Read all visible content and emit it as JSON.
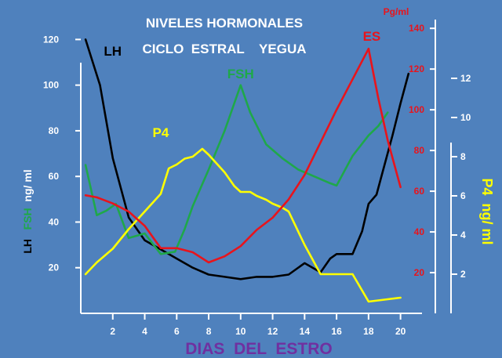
{
  "chart_data": {
    "type": "line",
    "title_line1": "NIVELES  HORMONALES",
    "title_line2": "CICLO  ESTRAL    YEGUA",
    "xlabel": "DIAS  DEL  ESTRO",
    "x_ticks": [
      2,
      4,
      6,
      8,
      10,
      12,
      14,
      16,
      18,
      20
    ],
    "xlim": [
      0,
      21
    ],
    "left_axis": {
      "label_parts": [
        "LH",
        "FSH",
        "ng/ ml"
      ],
      "ticks": [
        20,
        40,
        60,
        80,
        100,
        120
      ],
      "ylim": [
        0,
        127
      ]
    },
    "right_axis_es": {
      "unit": "Pg/ml",
      "ticks": [
        20,
        40,
        60,
        80,
        100,
        120,
        140
      ],
      "ylim": [
        0,
        147
      ]
    },
    "right_axis_p4": {
      "label": "P4  ng/ ml",
      "ticks": [
        2,
        4,
        6,
        8,
        10,
        12
      ],
      "ylim": [
        0,
        15.6
      ]
    },
    "series": [
      {
        "name": "LH",
        "color": "#000000",
        "axis": "left",
        "x": [
          0.3,
          1.2,
          2.0,
          3.0,
          4.0,
          5.0,
          6.0,
          7.0,
          8.0,
          9.0,
          10.0,
          11.0,
          12.0,
          13.0,
          14.0,
          15.0,
          15.6,
          16.0,
          17.0,
          17.6,
          18.0,
          18.5,
          19.0,
          19.5,
          20.0,
          20.5
        ],
        "y": [
          120,
          100,
          68,
          42,
          32,
          28,
          24,
          20,
          17,
          16,
          15,
          16,
          16,
          17,
          22,
          18,
          24,
          26,
          26,
          36,
          48,
          52,
          65,
          78,
          92,
          105
        ]
      },
      {
        "name": "FSH",
        "color": "#1fa84a",
        "axis": "left",
        "x": [
          0.3,
          1.0,
          1.6,
          2.2,
          3.0,
          4.0,
          5.0,
          5.9,
          6.5,
          7.0,
          8.0,
          9.0,
          10.0,
          10.6,
          11.6,
          12.6,
          13.6,
          14.6,
          15.6,
          16.0,
          17.0,
          18.0,
          18.6,
          19.2
        ],
        "y": [
          65,
          43,
          45,
          48,
          33,
          35,
          26,
          27,
          37,
          47,
          63,
          80,
          100,
          88,
          74,
          68,
          63,
          60,
          57,
          56,
          69,
          78,
          82,
          88
        ]
      },
      {
        "name": "P4",
        "color": "#ffff00",
        "axis": "p4",
        "x": [
          0.3,
          1.0,
          2.0,
          3.0,
          4.0,
          5.0,
          5.5,
          6.0,
          6.5,
          7.0,
          7.6,
          8.0,
          9.0,
          9.6,
          10.0,
          10.6,
          11.0,
          11.6,
          12.0,
          12.6,
          13.0,
          14.0,
          15.0,
          16.0,
          17.0,
          18.0,
          19.0,
          20.0
        ],
        "y": [
          2.0,
          2.6,
          3.3,
          4.3,
          5.2,
          6.1,
          7.4,
          7.6,
          7.9,
          8.0,
          8.4,
          8.1,
          7.2,
          6.5,
          6.2,
          6.2,
          6.0,
          5.8,
          5.6,
          5.4,
          5.2,
          3.5,
          2.0,
          2.0,
          2.0,
          0.6,
          0.7,
          0.8
        ]
      },
      {
        "name": "ES",
        "color": "#e8141c",
        "axis": "es",
        "x": [
          0.3,
          1.0,
          2.0,
          3.0,
          4.0,
          5.0,
          6.0,
          7.0,
          8.0,
          9.0,
          10.0,
          11.0,
          12.0,
          13.0,
          14.0,
          15.0,
          16.0,
          17.0,
          18.0,
          18.6,
          19.2,
          20.0
        ],
        "y": [
          58,
          57,
          54,
          50,
          43,
          32,
          32,
          30,
          25,
          28,
          33,
          41,
          47,
          56,
          68,
          84,
          100,
          115,
          130,
          106,
          85,
          62
        ]
      }
    ],
    "labels": [
      {
        "text": "LH",
        "series": "LH",
        "x": 2.0,
        "y": 113
      },
      {
        "text": "FSH",
        "series": "FSH",
        "x": 10.0,
        "y": 103
      },
      {
        "text": "P4",
        "series": "P4",
        "x": 5.0,
        "y": 9.0
      },
      {
        "text": "ES",
        "series": "ES",
        "x": 18.2,
        "y": 134
      }
    ],
    "colors": {
      "background": "#4f81bd",
      "axis": "#ffffff",
      "title": "#ffffff",
      "xlabel": "#7030a0",
      "lh": "#000000",
      "fsh": "#1fa84a",
      "p4": "#ffff00",
      "es": "#e8141c"
    },
    "grid": false,
    "legend": "none"
  }
}
